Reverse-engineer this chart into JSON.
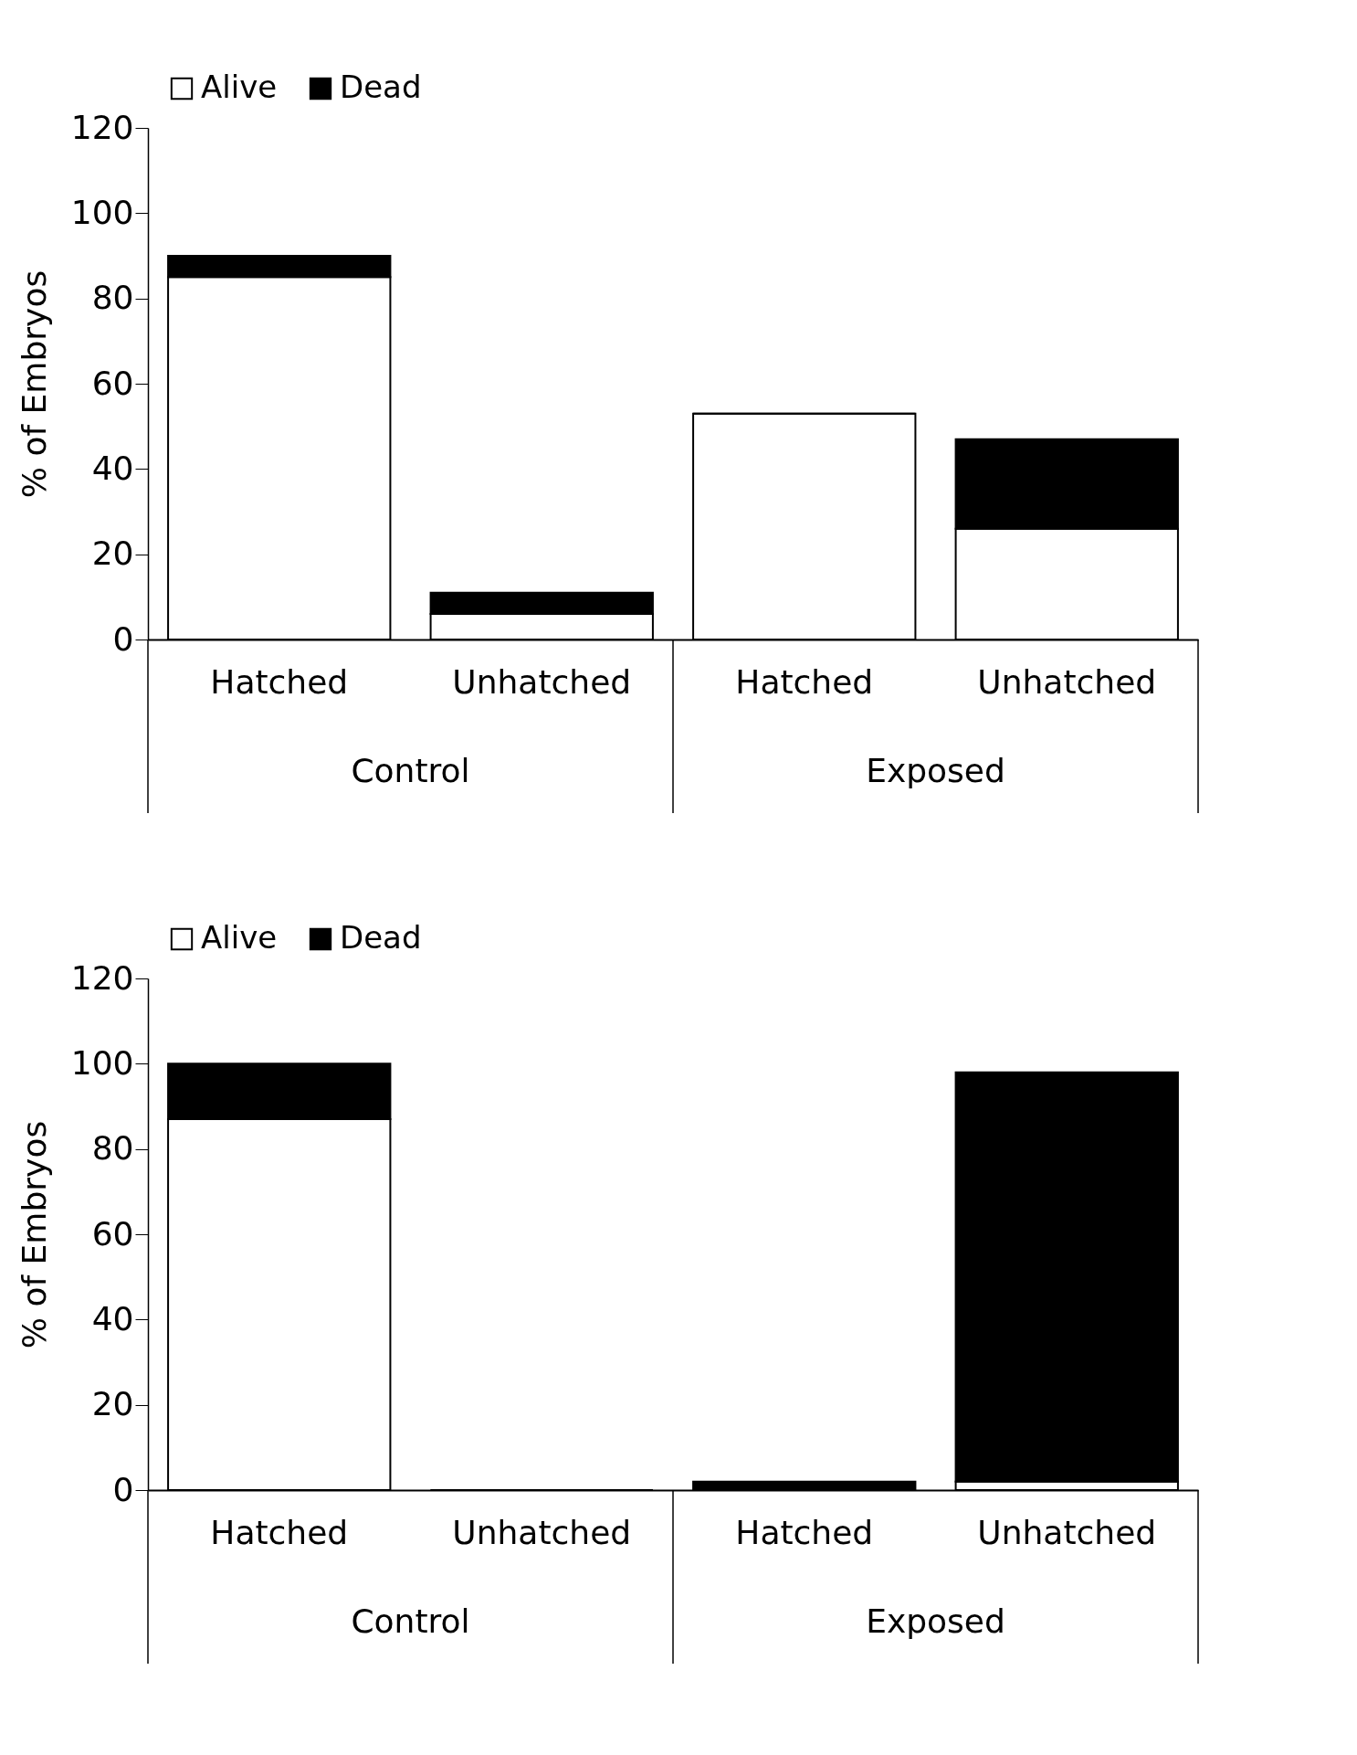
{
  "chart_data": [
    {
      "type": "bar",
      "stacked": true,
      "ylabel": "% of Embryos",
      "categories": [
        "Hatched",
        "Unhatched",
        "Hatched",
        "Unhatched"
      ],
      "annotations": [
        "Control",
        "Exposed"
      ],
      "ylim": [
        0,
        120
      ],
      "yticks": [
        0,
        20,
        40,
        60,
        80,
        100,
        120
      ],
      "legend": "top left",
      "grid": false,
      "series": [
        {
          "name": "Alive",
          "color": "#ffffff",
          "values": [
            85,
            6,
            53,
            26
          ]
        },
        {
          "name": "Dead",
          "color": "#000000",
          "values": [
            5,
            5,
            0,
            21
          ]
        }
      ]
    },
    {
      "type": "bar",
      "stacked": true,
      "ylabel": "% of Embryos",
      "categories": [
        "Hatched",
        "Unhatched",
        "Hatched",
        "Unhatched"
      ],
      "annotations": [
        "Control",
        "Exposed"
      ],
      "ylim": [
        0,
        120
      ],
      "yticks": [
        0,
        20,
        40,
        60,
        80,
        100,
        120
      ],
      "legend": "top left",
      "grid": false,
      "series": [
        {
          "name": "Alive",
          "color": "#ffffff",
          "values": [
            87,
            0,
            0,
            2
          ]
        },
        {
          "name": "Dead",
          "color": "#000000",
          "values": [
            13,
            0,
            2,
            96
          ]
        }
      ]
    }
  ]
}
